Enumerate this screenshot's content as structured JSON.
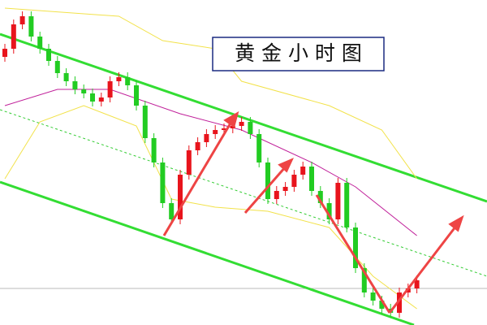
{
  "chart_data": {
    "type": "candlestick",
    "title": "黄 金 小 时 图",
    "open": [
      330,
      340,
      370,
      380,
      355,
      340,
      325,
      310,
      300,
      290,
      285,
      275,
      280,
      300,
      305,
      295,
      270,
      230,
      200,
      150,
      130,
      185,
      215,
      225,
      235,
      240,
      242,
      245,
      250,
      235,
      200,
      155,
      165,
      170,
      185,
      195,
      165,
      150,
      130,
      175,
      120,
      70,
      40,
      30,
      20,
      15,
      40,
      45
    ],
    "close": [
      340,
      370,
      380,
      355,
      340,
      325,
      310,
      300,
      290,
      285,
      275,
      280,
      300,
      305,
      295,
      270,
      230,
      200,
      150,
      130,
      185,
      215,
      225,
      235,
      240,
      242,
      245,
      250,
      235,
      200,
      155,
      165,
      170,
      185,
      195,
      165,
      150,
      130,
      175,
      120,
      70,
      40,
      30,
      20,
      15,
      40,
      45,
      55
    ],
    "high": [
      346,
      376,
      386,
      386,
      361,
      346,
      331,
      316,
      306,
      296,
      291,
      286,
      306,
      311,
      311,
      301,
      276,
      236,
      206,
      156,
      191,
      221,
      231,
      241,
      246,
      248,
      251,
      256,
      256,
      241,
      206,
      171,
      176,
      191,
      201,
      201,
      171,
      156,
      181,
      181,
      126,
      76,
      46,
      36,
      26,
      46,
      51,
      61
    ],
    "low": [
      324,
      334,
      364,
      349,
      334,
      319,
      304,
      294,
      284,
      279,
      269,
      269,
      274,
      294,
      289,
      264,
      224,
      194,
      144,
      124,
      124,
      179,
      209,
      219,
      229,
      234,
      236,
      239,
      229,
      194,
      149,
      149,
      159,
      164,
      179,
      159,
      144,
      124,
      124,
      114,
      64,
      34,
      24,
      14,
      9,
      9,
      34,
      39
    ],
    "up_color": "#e8141c",
    "down_color": "#22cc22",
    "ylim": [
      0,
      400
    ],
    "overlays": [
      {
        "color": "#f2e24a",
        "x": [
          0,
          13,
          18,
          24,
          27,
          37,
          43,
          47
        ],
        "values": [
          390,
          380,
          350,
          340,
          300,
          270,
          240,
          180
        ]
      },
      {
        "color": "#f2e24a",
        "x": [
          0,
          4,
          9,
          15,
          19,
          24,
          30,
          37,
          42,
          47
        ],
        "values": [
          180,
          250,
          270,
          245,
          155,
          145,
          140,
          120,
          60,
          20
        ]
      },
      {
        "color": "#c0209a",
        "x": [
          0,
          6,
          12,
          20,
          27,
          35,
          40,
          47
        ],
        "values": [
          270,
          290,
          290,
          260,
          240,
          200,
          170,
          110
        ]
      }
    ]
  }
}
